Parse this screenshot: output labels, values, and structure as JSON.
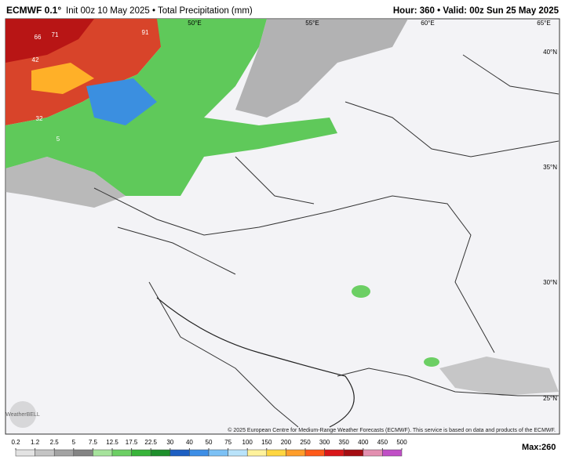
{
  "header": {
    "title": "ECMWF 0.1°",
    "subtitle": "Init 00z 10 May 2025 • Total Precipitation (mm)",
    "right": "Hour: 360 • Valid: 00z Sun 25 May 2025"
  },
  "map": {
    "lon_labels": [
      "50°E",
      "55°E",
      "60°E",
      "65°E"
    ],
    "lat_labels": [
      "40°N",
      "35°N",
      "30°N",
      "25°N"
    ],
    "values": [
      "66",
      "71",
      "91",
      "42",
      "32",
      "5"
    ],
    "logo": "WeatherBELL",
    "copyright": "© 2025 European Centre for Medium-Range Weather Forecasts (ECMWF). This service is based on data and products of the ECMWF."
  },
  "colorbar": {
    "ticks": [
      0.2,
      1.2,
      2.5,
      5,
      7.5,
      12.5,
      17.5,
      22.5,
      30,
      40,
      50,
      75,
      100,
      150,
      200,
      250,
      300,
      350,
      400,
      450,
      500
    ],
    "colors": [
      "#e3e3e3",
      "#c4c4c4",
      "#a3a3a3",
      "#848484",
      "#a6e39c",
      "#6ccf64",
      "#38b43a",
      "#1e8f2c",
      "#1d5fc2",
      "#3d8ee6",
      "#7cc1f5",
      "#b9e3fa",
      "#fff29c",
      "#ffd640",
      "#ff9d2a",
      "#ff5a1a",
      "#d9171a",
      "#a50d12",
      "#e38fb0",
      "#c04fc6"
    ]
  },
  "max": {
    "label": "Max:",
    "value": 260
  }
}
